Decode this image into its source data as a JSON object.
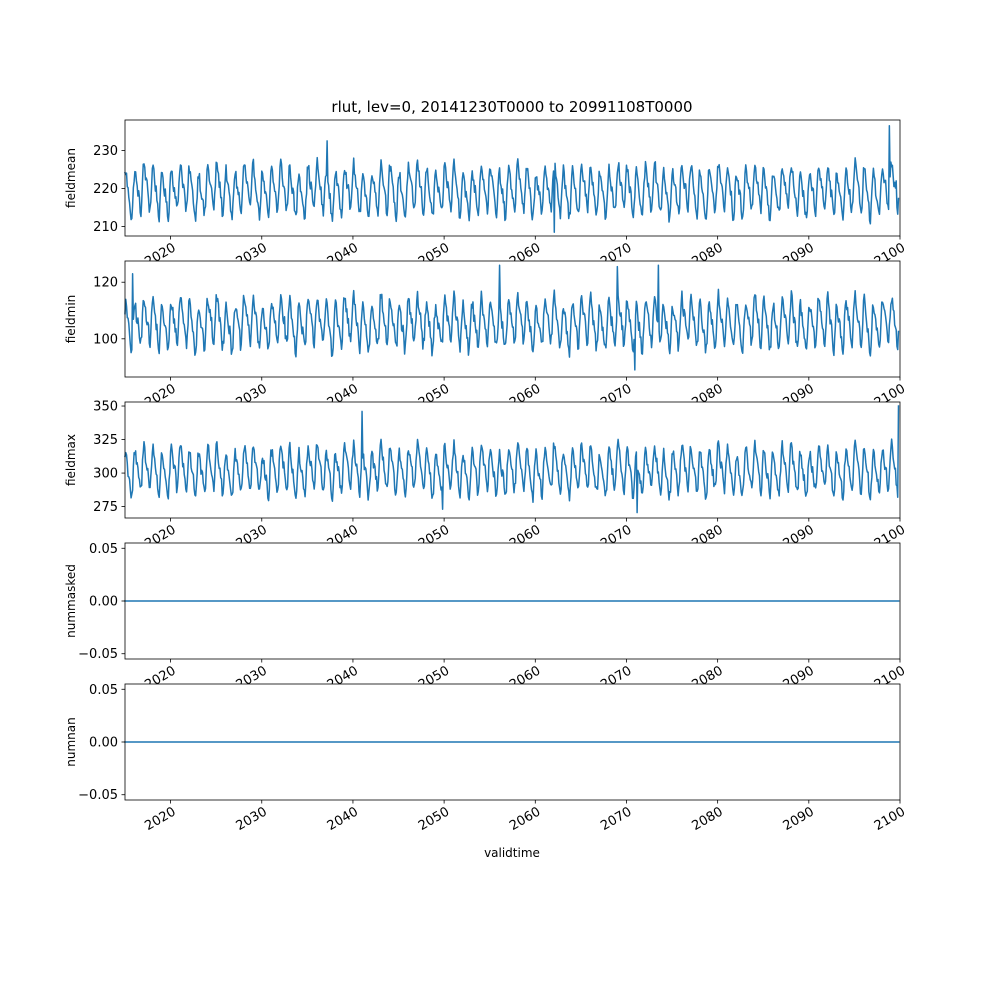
{
  "chart_data": {
    "type": "line",
    "title": "rlut, lev=0, 20141230T0000 to 20991108T0000",
    "xlabel": "validtime",
    "xlim": [
      2015.0,
      2100.0
    ],
    "x_ticks": [
      2020,
      2030,
      2040,
      2050,
      2060,
      2070,
      2080,
      2090,
      2100
    ],
    "x_tick_labels": [
      "2020",
      "2030",
      "2040",
      "2050",
      "2060",
      "2070",
      "2080",
      "2090",
      "2100"
    ],
    "x_start": 2015.0,
    "x_end": 2099.85,
    "line_color": "#1f77b4",
    "grid": false,
    "subplots": [
      {
        "ylabel": "fieldmean",
        "ylim": [
          207.5,
          238.0
        ],
        "y_ticks": [
          210,
          220,
          230
        ],
        "y_tick_labels": [
          "210",
          "220",
          "230"
        ],
        "base": 219.5,
        "amplitude": 5.2,
        "noise": 1.6,
        "peaks": [
          {
            "x": 2037.2,
            "y": 232.5
          },
          {
            "x": 2062.1,
            "y": 208.5
          },
          {
            "x": 2098.8,
            "y": 236.5
          },
          {
            "x": 2099.6,
            "y": 222.0
          }
        ]
      },
      {
        "ylabel": "fieldmin",
        "ylim": [
          86.5,
          127.5
        ],
        "y_ticks": [
          100,
          120
        ],
        "y_tick_labels": [
          "100",
          "120"
        ],
        "base": 105.5,
        "amplitude": 7.0,
        "noise": 2.4,
        "peaks": [
          {
            "x": 2015.8,
            "y": 123.0
          },
          {
            "x": 2056.1,
            "y": 126.0
          },
          {
            "x": 2069.0,
            "y": 125.5
          },
          {
            "x": 2070.9,
            "y": 89.0
          },
          {
            "x": 2073.5,
            "y": 126.0
          }
        ]
      },
      {
        "ylabel": "fieldmax",
        "ylim": [
          266.5,
          353.0
        ],
        "y_ticks": [
          275,
          300,
          325,
          350
        ],
        "y_tick_labels": [
          "275",
          "300",
          "325",
          "350"
        ],
        "base": 302.0,
        "amplitude": 14.0,
        "noise": 4.5,
        "peaks": [
          {
            "x": 2041.0,
            "y": 346.0
          },
          {
            "x": 2049.8,
            "y": 273.0
          },
          {
            "x": 2071.2,
            "y": 270.5
          },
          {
            "x": 2099.8,
            "y": 350.0
          }
        ]
      },
      {
        "ylabel": "nummasked",
        "ylim": [
          -0.055,
          0.055
        ],
        "y_ticks": [
          0.05,
          0.0,
          -0.05
        ],
        "y_tick_labels": [
          "0.05",
          "0.00",
          "−0.05"
        ],
        "constant": 0.0
      },
      {
        "ylabel": "numnan",
        "ylim": [
          -0.055,
          0.055
        ],
        "y_ticks": [
          0.05,
          0.0,
          -0.05
        ],
        "y_tick_labels": [
          "0.05",
          "0.00",
          "−0.05"
        ],
        "constant": 0.0
      }
    ]
  }
}
